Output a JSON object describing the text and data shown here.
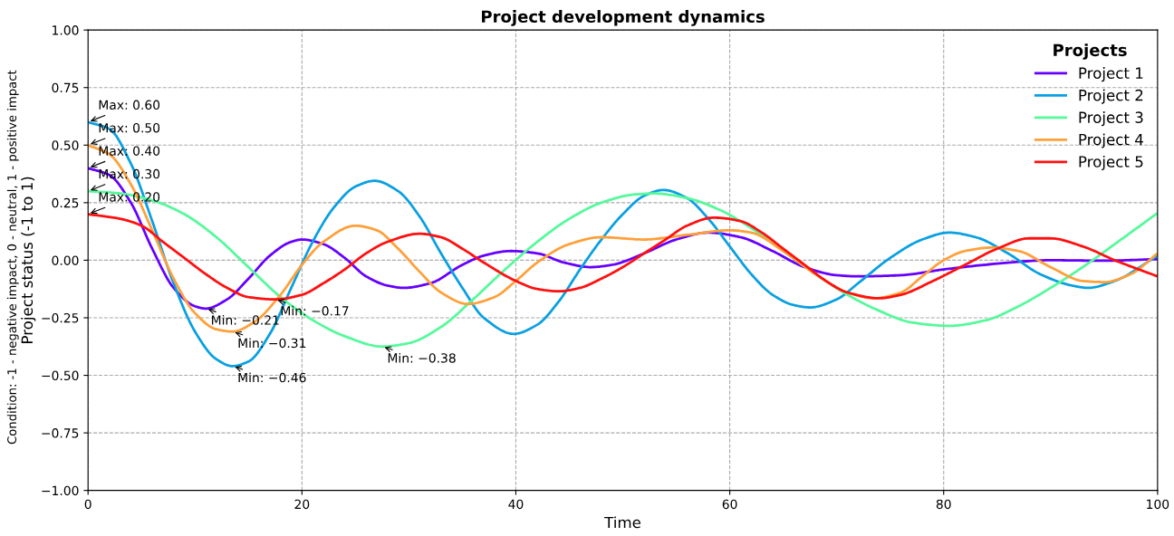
{
  "chart_data": {
    "type": "line",
    "title": "Project development dynamics",
    "xlabel": "Time",
    "ylabel": "Project status (-1 to 1)",
    "legend_title": "Projects",
    "legend": "top right",
    "grid": true,
    "line_style": "solid",
    "marker": "none",
    "xlim": [
      0,
      100
    ],
    "xticks": [
      0,
      20,
      40,
      60,
      80,
      100
    ],
    "ylim": [
      -1,
      1
    ],
    "yticks": [
      {
        "value": -1,
        "label": "−1.00"
      },
      {
        "value": -0.75,
        "label": "−0.75"
      },
      {
        "value": -0.5,
        "label": "−0.50"
      },
      {
        "value": -0.25,
        "label": "−0.25"
      },
      {
        "value": 0,
        "label": "0.00"
      },
      {
        "value": 0.25,
        "label": "0.25"
      },
      {
        "value": 0.5,
        "label": "0.50"
      },
      {
        "value": 0.75,
        "label": "0.75"
      },
      {
        "value": 1,
        "label": "1.00"
      }
    ],
    "series": [
      {
        "name": "Project 1",
        "color": "#6600ff",
        "x": [
          0,
          2,
          4,
          6,
          8,
          10,
          11,
          13,
          15,
          17,
          19,
          20,
          22,
          24,
          26,
          28,
          29.5,
          32,
          35,
          37,
          39.5,
          42,
          44.5,
          47,
          49,
          52,
          55,
          58,
          61,
          64,
          67,
          70,
          72,
          76,
          80,
          85,
          90,
          95,
          100
        ],
        "values": [
          0.4,
          0.37,
          0.25,
          0.05,
          -0.12,
          -0.2,
          -0.21,
          -0.17,
          -0.08,
          0.02,
          0.08,
          0.09,
          0.07,
          0.01,
          -0.07,
          -0.11,
          -0.12,
          -0.1,
          -0.02,
          0.02,
          0.04,
          0.03,
          -0.01,
          -0.03,
          -0.02,
          0.03,
          0.09,
          0.12,
          0.1,
          0.04,
          -0.03,
          -0.065,
          -0.07,
          -0.065,
          -0.04,
          -0.015,
          0.0,
          -0.002,
          0.005
        ]
      },
      {
        "name": "Project 2",
        "color": "#0aa0e0",
        "x": [
          0,
          2,
          4,
          6,
          8,
          10,
          12,
          13.5,
          15,
          17,
          19,
          21,
          23,
          25,
          26.8,
          29,
          31,
          33,
          35,
          37,
          39.8,
          42,
          44,
          46,
          48,
          50,
          52,
          53.8,
          56,
          58,
          60,
          62,
          64,
          66,
          67.5,
          70,
          72,
          75,
          78,
          80.5,
          83,
          86,
          89,
          92,
          93.5,
          96,
          100
        ],
        "values": [
          0.6,
          0.57,
          0.42,
          0.17,
          -0.1,
          -0.31,
          -0.43,
          -0.46,
          -0.44,
          -0.32,
          -0.12,
          0.08,
          0.23,
          0.32,
          0.345,
          0.3,
          0.19,
          0.03,
          -0.12,
          -0.25,
          -0.32,
          -0.28,
          -0.18,
          -0.04,
          0.09,
          0.2,
          0.28,
          0.305,
          0.27,
          0.18,
          0.06,
          -0.06,
          -0.15,
          -0.195,
          -0.205,
          -0.17,
          -0.1,
          0.01,
          0.09,
          0.12,
          0.1,
          0.03,
          -0.06,
          -0.11,
          -0.12,
          -0.09,
          0.02
        ]
      },
      {
        "name": "Project 3",
        "color": "#55f99b",
        "x": [
          0,
          3,
          6,
          9,
          12,
          15,
          18,
          21,
          24,
          27.5,
          30,
          33,
          36,
          39,
          42,
          45,
          48,
          51,
          53,
          56,
          59,
          62,
          65,
          68,
          71,
          74,
          77,
          80.5,
          84,
          87,
          90,
          93,
          96,
          100
        ],
        "values": [
          0.3,
          0.29,
          0.26,
          0.2,
          0.1,
          -0.03,
          -0.16,
          -0.26,
          -0.33,
          -0.375,
          -0.36,
          -0.29,
          -0.17,
          -0.04,
          0.08,
          0.18,
          0.25,
          0.285,
          0.29,
          0.27,
          0.22,
          0.14,
          0.04,
          -0.06,
          -0.15,
          -0.22,
          -0.27,
          -0.285,
          -0.26,
          -0.2,
          -0.12,
          -0.03,
          0.07,
          0.205
        ]
      },
      {
        "name": "Project 4",
        "color": "#ffa03a",
        "x": [
          0,
          2,
          4,
          6,
          8,
          10,
          12,
          13.5,
          15.5,
          18,
          20,
          22,
          25,
          27,
          29,
          31,
          33,
          35.5,
          38,
          40,
          42,
          45,
          48,
          52,
          56,
          60,
          62,
          65,
          68,
          71,
          73.5,
          76,
          78,
          80,
          82,
          84.5,
          87,
          90,
          93,
          95,
          97.5,
          100
        ],
        "values": [
          0.5,
          0.46,
          0.33,
          0.13,
          -0.08,
          -0.23,
          -0.3,
          -0.31,
          -0.27,
          -0.15,
          -0.02,
          0.08,
          0.15,
          0.13,
          0.05,
          -0.05,
          -0.14,
          -0.19,
          -0.16,
          -0.09,
          -0.01,
          0.07,
          0.1,
          0.09,
          0.11,
          0.13,
          0.12,
          0.04,
          -0.06,
          -0.14,
          -0.165,
          -0.14,
          -0.07,
          0.0,
          0.04,
          0.055,
          0.04,
          -0.03,
          -0.09,
          -0.095,
          -0.06,
          0.03
        ]
      },
      {
        "name": "Project 5",
        "color": "#ff1010",
        "x": [
          0,
          3,
          5,
          7,
          9,
          11,
          13,
          15,
          17.5,
          20,
          22,
          24,
          26,
          28,
          31,
          33,
          35,
          37,
          40,
          42,
          44,
          46,
          48,
          50,
          52,
          54,
          56,
          58.5,
          61,
          63,
          65,
          67,
          69,
          71,
          74,
          76,
          79,
          82,
          85,
          88,
          90,
          93,
          96,
          100
        ],
        "values": [
          0.2,
          0.18,
          0.15,
          0.08,
          0.01,
          -0.06,
          -0.12,
          -0.16,
          -0.17,
          -0.15,
          -0.1,
          -0.04,
          0.03,
          0.08,
          0.115,
          0.1,
          0.05,
          -0.01,
          -0.09,
          -0.125,
          -0.135,
          -0.12,
          -0.08,
          -0.03,
          0.03,
          0.09,
          0.15,
          0.185,
          0.17,
          0.12,
          0.05,
          -0.02,
          -0.09,
          -0.14,
          -0.165,
          -0.15,
          -0.09,
          -0.02,
          0.05,
          0.095,
          0.095,
          0.06,
          0.0,
          -0.07
        ]
      }
    ],
    "annotations": [
      {
        "text": "Max: 0.60",
        "x": 0,
        "y": 0.6
      },
      {
        "text": "Max: 0.50",
        "x": 0,
        "y": 0.5
      },
      {
        "text": "Max: 0.40",
        "x": 0,
        "y": 0.4
      },
      {
        "text": "Max: 0.30",
        "x": 0,
        "y": 0.3
      },
      {
        "text": "Max: 0.20",
        "x": 0,
        "y": 0.2
      },
      {
        "text": "Min: −0.21",
        "x": 11,
        "y": -0.21
      },
      {
        "text": "Min: −0.46",
        "x": 13.5,
        "y": -0.46
      },
      {
        "text": "Min: −0.38",
        "x": 27.5,
        "y": -0.375
      },
      {
        "text": "Min: −0.31",
        "x": 13.5,
        "y": -0.31
      },
      {
        "text": "Min: −0.17",
        "x": 17.5,
        "y": -0.17
      },
      "Condition: -1 - negative impact, 0 - neutral, 1 - positive impact"
    ]
  }
}
